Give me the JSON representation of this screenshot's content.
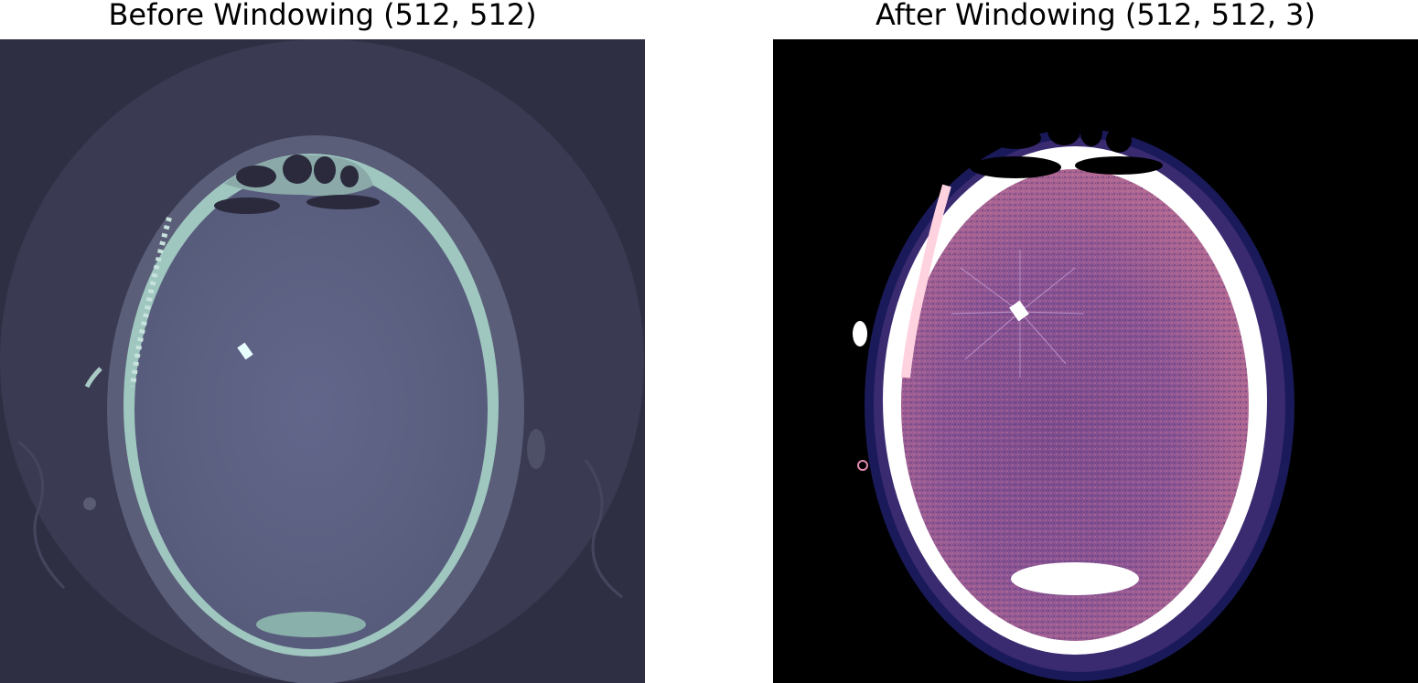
{
  "figure": {
    "left_title": "Before Windowing (512, 512)",
    "right_title": "After Windowing (512, 512, 3)"
  },
  "colors": {
    "left_background": "#2f2f44",
    "left_fov": "#3a3a52",
    "left_scalp": "#5a5e78",
    "left_bone": "#9fc7c0",
    "left_brain": "#5e6282",
    "right_background": "#000000",
    "right_scalp": "#1a1a5a",
    "right_bone": "#ffffff",
    "right_brain": "#7a4f8e",
    "right_brain_highlight": "#c86f8f"
  }
}
